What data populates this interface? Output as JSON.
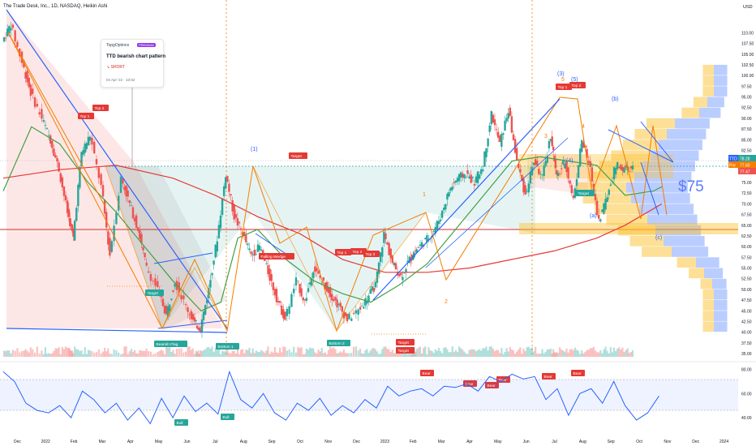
{
  "header": {
    "title": "The Trade Desk, Inc., 1D, NASDAQ, Heikin Ashi",
    "currency": "USD"
  },
  "note": {
    "author": "TopgOptions",
    "badge": "PREMIUM",
    "title": "TTD bearish chart pattern",
    "side": "↘ SHORT",
    "timestamp": "04 Apr '22 · 10:52"
  },
  "price_tags": {
    "last": "78.28",
    "last_label": "TTD",
    "pre": "77.60",
    "pre_label": "Pre",
    "third": "77.47"
  },
  "big_annotation": "$75",
  "colors": {
    "up": "#26a69a",
    "down": "#ef5350",
    "ma_slow": "#e53935",
    "ma_fast": "#43a047",
    "trend": "#2962ff",
    "orange": "#f57c00",
    "rsi": "#2962ff"
  },
  "chart_data": [
    {
      "type": "line",
      "title": "The Trade Desk, Inc., 1D, NASDAQ, Heikin Ashi",
      "ylabel": "USD",
      "ylim": [
        35,
        115
      ],
      "log_scale": false,
      "grid": false,
      "x_ticks": [
        "Dec",
        "2022",
        "Feb",
        "Mar",
        "Apr",
        "May",
        "Jun",
        "Jul",
        "Aug",
        "Sep",
        "Oct",
        "Nov",
        "Dec",
        "2023",
        "Feb",
        "Mar",
        "Apr",
        "May",
        "Jun",
        "Jul",
        "Aug",
        "Sep",
        "Oct",
        "Nov",
        "Dec",
        "2024"
      ],
      "y_ticks": [
        "35.00",
        "37.50",
        "40.00",
        "42.50",
        "45.00",
        "47.50",
        "50.00",
        "52.50",
        "55.00",
        "57.50",
        "60.00",
        "62.50",
        "65.00",
        "67.50",
        "70.00",
        "72.50",
        "75.00",
        "77.50",
        "80.00",
        "82.50",
        "85.00",
        "87.50",
        "90.00",
        "92.50",
        "95.00",
        "97.50",
        "100.00",
        "102.50",
        "105.00",
        "107.50",
        "110.00"
      ],
      "x_range": [
        0,
        26
      ],
      "series": [
        {
          "name": "TTD",
          "x": [
            0,
            0.3,
            0.7,
            1.0,
            1.4,
            1.7,
            2.0,
            2.3,
            2.5,
            2.8,
            3.1,
            3.5,
            3.8,
            4.2,
            4.5,
            4.8,
            5.1,
            5.5,
            5.8,
            6.1,
            6.5,
            6.8,
            7.0,
            7.3,
            7.6,
            7.9,
            8.2,
            8.5,
            8.8,
            9.1,
            9.4,
            9.7,
            10.0,
            10.4,
            10.7,
            11.0,
            11.3,
            11.6,
            11.9,
            12.2,
            12.6,
            12.9,
            13.2,
            13.5,
            13.8,
            14.1,
            14.4,
            14.6,
            14.9,
            15.2,
            15.5,
            15.8,
            16.1,
            16.4,
            16.7,
            17.0,
            17.3,
            17.6,
            17.9,
            18.2,
            18.5,
            18.8,
            19.1,
            19.4,
            19.6,
            19.9,
            20.2,
            20.5,
            20.8,
            21.1,
            21.4,
            21.7,
            22.0,
            22.3,
            22.6,
            22.9,
            23.1,
            23.3
          ],
          "y": [
            108,
            112,
            103,
            96,
            90,
            85,
            78,
            68,
            62,
            82,
            86,
            74,
            58,
            76,
            70,
            64,
            55,
            50,
            44,
            52,
            46,
            42,
            41,
            50,
            62,
            77,
            67,
            63,
            58,
            60,
            54,
            48,
            43,
            52,
            47,
            55,
            52,
            49,
            46,
            43,
            45,
            48,
            51,
            63,
            56,
            53,
            57,
            59,
            61,
            63,
            67,
            73,
            76,
            77,
            75,
            79,
            91,
            84,
            92,
            80,
            72,
            80,
            76,
            86,
            76,
            80,
            71,
            85,
            78,
            66,
            72,
            79,
            78,
            78.28,
            null,
            null,
            null,
            null
          ]
        },
        {
          "name": "MA slow",
          "x": [
            0,
            2,
            4,
            6,
            7.5,
            9,
            10.5,
            12,
            13.5,
            15,
            16.5,
            18,
            19.5,
            21,
            22,
            23.3
          ],
          "y": [
            76,
            78,
            79,
            76,
            72,
            67,
            63,
            57,
            54,
            54,
            55,
            57,
            59,
            62,
            65,
            70
          ]
        },
        {
          "name": "MA fast",
          "x": [
            0,
            1,
            2,
            3,
            4,
            5,
            6,
            7,
            7.7,
            8.3,
            9,
            10,
            11,
            12,
            13,
            14,
            15,
            16,
            17,
            18,
            19,
            20,
            21,
            22,
            23,
            23.3
          ],
          "y": [
            73,
            88,
            84,
            75,
            68,
            60,
            52,
            45,
            47,
            62,
            64,
            57,
            52,
            49,
            47,
            51,
            56,
            64,
            72,
            80,
            81,
            80,
            79,
            72,
            73,
            74
          ]
        }
      ]
    },
    {
      "type": "line",
      "title": "",
      "ylim": [
        30,
        85
      ],
      "y_ticks": [
        "40.00",
        "60.00",
        "80.00"
      ],
      "bands": [
        [
          40,
          70
        ]
      ],
      "series": [
        {
          "name": "RSI",
          "x": [
            0,
            0.4,
            0.8,
            1.2,
            1.6,
            2.0,
            2.4,
            2.8,
            3.2,
            3.6,
            4.0,
            4.4,
            4.8,
            5.2,
            5.6,
            6.0,
            6.4,
            6.8,
            7.2,
            7.6,
            8.0,
            8.4,
            8.8,
            9.2,
            9.6,
            10.0,
            10.4,
            10.8,
            11.2,
            11.6,
            12.0,
            12.4,
            12.8,
            13.2,
            13.6,
            14.0,
            14.4,
            14.8,
            15.2,
            15.6,
            16.0,
            16.4,
            16.8,
            17.2,
            17.6,
            18.0,
            18.4,
            18.8,
            19.2,
            19.6,
            20.0,
            20.4,
            20.8,
            21.2,
            21.6,
            22.0,
            22.4,
            22.8,
            23.2
          ],
          "y": [
            78,
            70,
            52,
            46,
            44,
            50,
            40,
            62,
            55,
            44,
            52,
            38,
            48,
            35,
            56,
            40,
            58,
            45,
            52,
            43,
            78,
            55,
            48,
            60,
            44,
            38,
            52,
            46,
            56,
            42,
            50,
            44,
            55,
            48,
            66,
            58,
            62,
            64,
            58,
            66,
            65,
            68,
            62,
            74,
            70,
            76,
            72,
            74,
            55,
            64,
            42,
            60,
            64,
            52,
            70,
            50,
            38,
            44,
            58
          ]
        }
      ]
    }
  ],
  "wave_labels": [
    "(1)",
    "1",
    "2",
    "3",
    "(3)",
    "4",
    "(4)",
    "5",
    "(5)",
    "(b)",
    "(a)",
    "(c)"
  ],
  "pattern_labels": {
    "top1_a": "Top 1",
    "top2_a": "Top 2",
    "target_a": "Target",
    "target_b": "Target",
    "target_c": "Target",
    "target_d": "Target",
    "target_e": "Target",
    "bearish_flag": "Bearish Flag",
    "bottom1": "Bottom 1",
    "bottom2": "Bottom 2",
    "falling_wedge": "Falling Wedge",
    "top1_b": "Top 1",
    "top2_b": "Top 2",
    "top3_b": "Top 3",
    "top1_c": "Top 1",
    "top2_c": "Top 2",
    "bull_a": "Bull",
    "bull_b": "Bull",
    "bear_a": "Bear",
    "bear_b": "Bear",
    "bear_c": "Bear",
    "bear_d": "Bear",
    "bear_e": "Bear",
    "bear_f": "Bear"
  }
}
